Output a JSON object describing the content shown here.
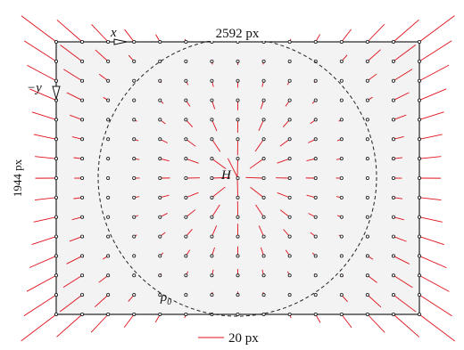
{
  "labels": {
    "x_axis": "x",
    "y_axis": "−y",
    "width": "2592 px",
    "height": "1944 px",
    "center": "H",
    "radius": "ρ",
    "radius_sub": "0",
    "scale": "20 px"
  }
}
